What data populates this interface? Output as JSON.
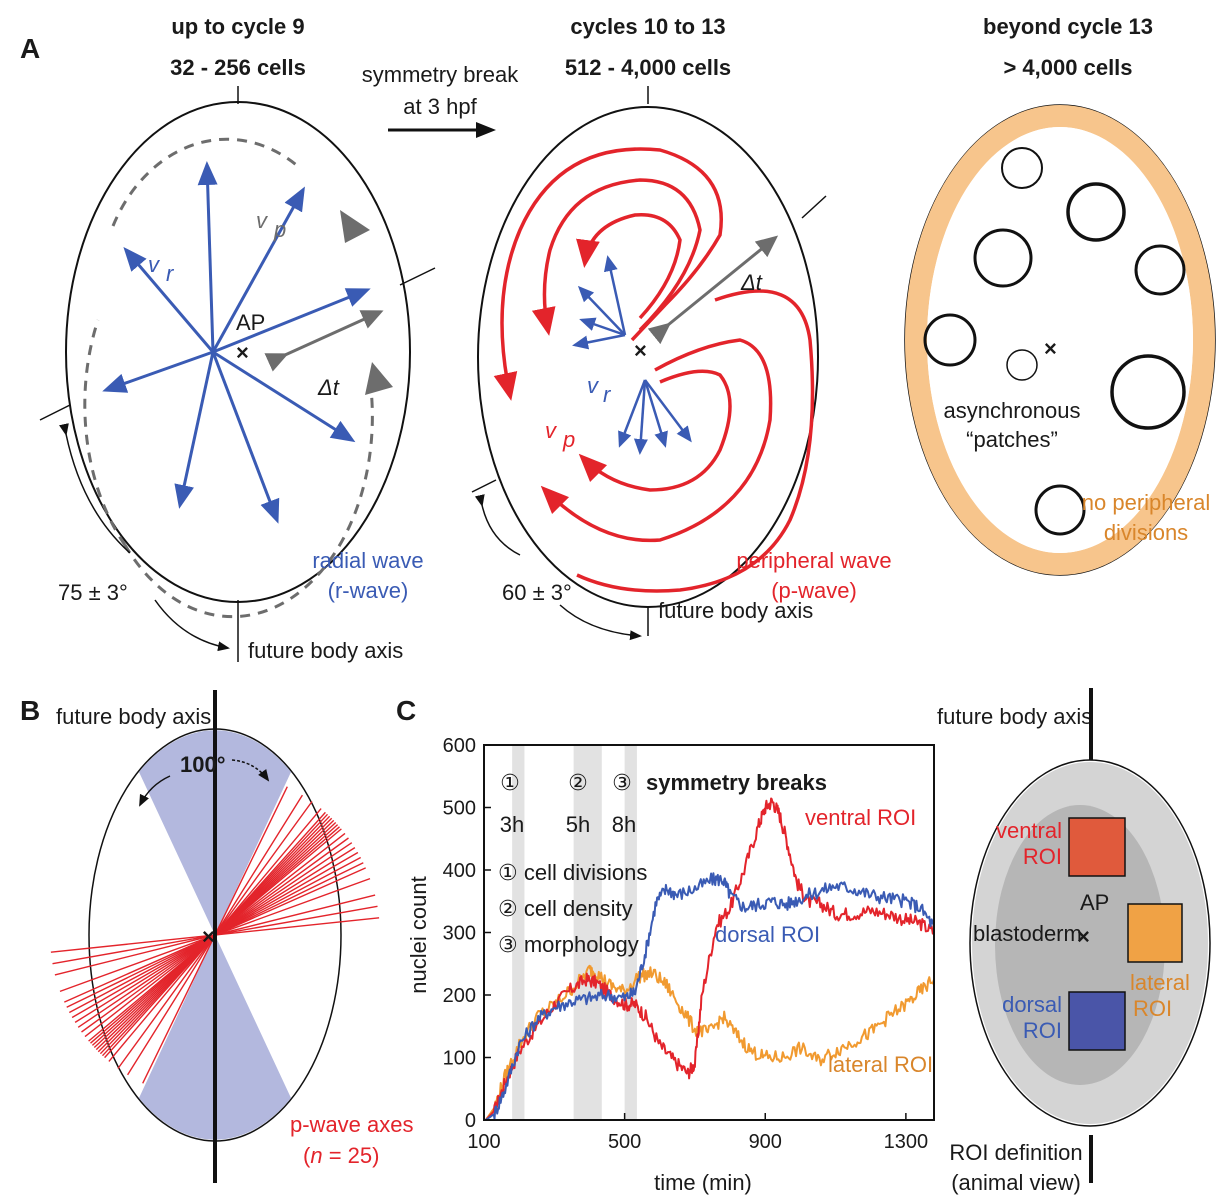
{
  "panel_labels": [
    "A",
    "B",
    "C"
  ],
  "panel_a": {
    "left": {
      "header_line1": "up to cycle 9",
      "header_line2": "32 - 256 cells",
      "vp_label": "v",
      "vp_sub": "p",
      "vr_label": "v",
      "vr_sub": "r",
      "ap_label": "AP",
      "dt_label": "Δt",
      "wave_line1": "radial wave",
      "wave_line2": "(r-wave)",
      "angle_label": "75 ± 3°",
      "axis_label": "future body axis"
    },
    "transition": {
      "line1": "symmetry break",
      "line2": "at 3 hpf"
    },
    "middle": {
      "header_line1": "cycles 10 to 13",
      "header_line2": "512 - 4,000 cells",
      "dt_label": "Δt",
      "vr_label": "v",
      "vr_sub": "r",
      "vp_label": "v",
      "vp_sub": "p",
      "wave_line1": "peripheral wave",
      "wave_line2": "(p-wave)",
      "angle_label": "60 ± 3°",
      "axis_label": "future body axis"
    },
    "right": {
      "header_line1": "beyond cycle 13",
      "header_line2": "> 4,000 cells",
      "patch_line1": "asynchronous",
      "patch_line2": "“patches”",
      "nodiv_line1": "no peripheral",
      "nodiv_line2": "divisions"
    }
  },
  "panel_b": {
    "axis_label": "future body axis",
    "angle_label": "100°",
    "pwave_label": "p-wave axes",
    "n_label_pre": "(",
    "n_label_n": "n",
    "n_label_post": " = 25)"
  },
  "panel_c": {
    "ylabel": "nuclei count",
    "xlabel": "time (min)",
    "legend": {
      "n1": "①",
      "n2": "②",
      "n3": "③",
      "header": "symmetry breaks",
      "t1": "3h",
      "t2": "5h",
      "t3": "8h",
      "item1": "① cell divisions",
      "item2": "② cell density",
      "item3": "③ morphology"
    },
    "series_labels": {
      "ventral": "ventral ROI",
      "dorsal": "dorsal ROI",
      "lateral": "lateral ROI"
    },
    "inset": {
      "axis_label": "future body axis",
      "ventral_line1": "ventral",
      "ventral_line2": "ROI",
      "ap_label": "AP",
      "blastoderm_label": "blastoderm",
      "lateral_line1": "lateral",
      "lateral_line2": "ROI",
      "dorsal_line1": "dorsal",
      "dorsal_line2": "ROI",
      "def_line1": "ROI definition",
      "def_line2": "(animal view)"
    }
  },
  "chart_data": {
    "type": "line",
    "title": "",
    "xlabel": "time (min)",
    "ylabel": "nuclei count",
    "xlim": [
      100,
      1380
    ],
    "ylim": [
      0,
      600
    ],
    "xticks": [
      100,
      500,
      900,
      1300
    ],
    "yticks": [
      0,
      100,
      200,
      300,
      400,
      500,
      600
    ],
    "shaded_bands": [
      {
        "label": "3h",
        "from": 180,
        "to": 215
      },
      {
        "label": "5h",
        "from": 355,
        "to": 435
      },
      {
        "label": "8h",
        "from": 500,
        "to": 535
      }
    ],
    "series": [
      {
        "name": "ventral ROI",
        "color": "#e3242b",
        "x": [
          105,
          130,
          160,
          200,
          250,
          300,
          350,
          390,
          420,
          460,
          500,
          530,
          560,
          600,
          640,
          680,
          700,
          720,
          760,
          800,
          840,
          880,
          900,
          920,
          940,
          960,
          990,
          1020,
          1060,
          1100,
          1150,
          1200,
          1250,
          1300,
          1340,
          1380
        ],
        "y": [
          0,
          15,
          60,
          110,
          150,
          185,
          210,
          225,
          220,
          200,
          185,
          185,
          165,
          120,
          95,
          75,
          90,
          200,
          310,
          340,
          400,
          470,
          500,
          510,
          490,
          450,
          380,
          350,
          345,
          330,
          330,
          335,
          330,
          320,
          315,
          300
        ]
      },
      {
        "name": "dorsal ROI",
        "color": "#3a5bb4",
        "x": [
          105,
          130,
          160,
          200,
          250,
          300,
          350,
          400,
          450,
          500,
          530,
          560,
          590,
          620,
          650,
          700,
          750,
          780,
          800,
          840,
          880,
          920,
          960,
          1000,
          1050,
          1100,
          1150,
          1200,
          1250,
          1300,
          1340,
          1380
        ],
        "y": [
          0,
          10,
          50,
          120,
          160,
          180,
          190,
          195,
          200,
          195,
          205,
          270,
          350,
          370,
          360,
          370,
          385,
          385,
          360,
          340,
          345,
          350,
          345,
          355,
          365,
          375,
          370,
          360,
          355,
          350,
          340,
          310
        ]
      },
      {
        "name": "lateral ROI",
        "color": "#f19a30",
        "x": [
          105,
          130,
          160,
          200,
          250,
          300,
          350,
          400,
          420,
          460,
          500,
          540,
          580,
          620,
          660,
          700,
          740,
          780,
          820,
          860,
          900,
          950,
          1000,
          1050,
          1100,
          1150,
          1200,
          1250,
          1300,
          1340,
          1380
        ],
        "y": [
          0,
          20,
          70,
          120,
          165,
          185,
          210,
          240,
          235,
          215,
          205,
          230,
          235,
          215,
          180,
          145,
          140,
          165,
          135,
          110,
          100,
          100,
          115,
          95,
          110,
          125,
          140,
          165,
          185,
          205,
          225
        ]
      }
    ]
  }
}
